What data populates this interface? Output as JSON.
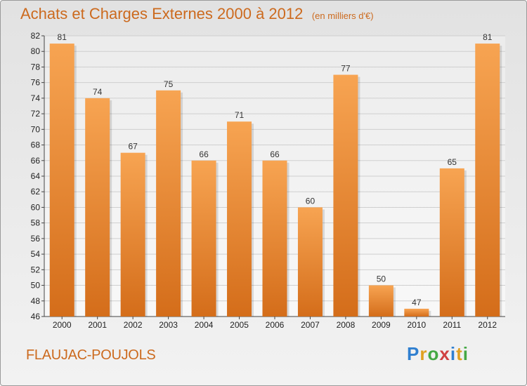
{
  "chart_data": {
    "type": "bar",
    "title": "Achats et Charges Externes 2000 à 2012",
    "subtitle": "(en milliers d'€)",
    "categories": [
      "2000",
      "2001",
      "2002",
      "2003",
      "2004",
      "2005",
      "2006",
      "2007",
      "2008",
      "2009",
      "2010",
      "2011",
      "2012"
    ],
    "values": [
      81,
      74,
      67,
      75,
      66,
      71,
      66,
      60,
      77,
      50,
      47,
      65,
      81
    ],
    "ylim": [
      46,
      82
    ],
    "yticks": [
      46,
      48,
      50,
      52,
      54,
      56,
      58,
      60,
      62,
      64,
      66,
      68,
      70,
      72,
      74,
      76,
      78,
      80,
      82
    ],
    "grid": true,
    "bar_color": "#f0923c"
  },
  "footer": {
    "place": "FLAUJAC-POUJOLS",
    "logo_letters": [
      "P",
      "r",
      "o",
      "x",
      "i",
      "t",
      "i"
    ]
  }
}
